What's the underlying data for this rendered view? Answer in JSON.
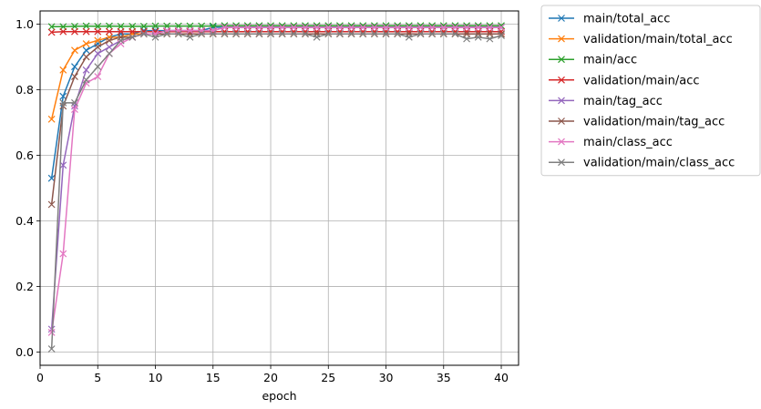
{
  "chart_data": {
    "type": "line",
    "title": "",
    "xlabel": "epoch",
    "ylabel": "",
    "xlim": [
      0,
      41.5
    ],
    "ylim": [
      -0.04,
      1.04
    ],
    "xticks": [
      0,
      5,
      10,
      15,
      20,
      25,
      30,
      35,
      40
    ],
    "xtick_labels": [
      "0",
      "5",
      "10",
      "15",
      "20",
      "25",
      "30",
      "35",
      "40"
    ],
    "yticks": [
      0.0,
      0.2,
      0.4,
      0.6,
      0.8,
      1.0
    ],
    "ytick_labels": [
      "0.0",
      "0.2",
      "0.4",
      "0.6",
      "0.8",
      "1.0"
    ],
    "grid": true,
    "marker": "x",
    "legend_position": "outside-top-right",
    "x": [
      1,
      2,
      3,
      4,
      5,
      6,
      7,
      8,
      9,
      10,
      11,
      12,
      13,
      14,
      15,
      16,
      17,
      18,
      19,
      20,
      21,
      22,
      23,
      24,
      25,
      26,
      27,
      28,
      29,
      30,
      31,
      32,
      33,
      34,
      35,
      36,
      37,
      38,
      39,
      40
    ],
    "series": [
      {
        "name": "main/total_acc",
        "color": "#1f77b4",
        "values": [
          0.53,
          0.78,
          0.87,
          0.92,
          0.94,
          0.96,
          0.97,
          0.97,
          0.98,
          0.98,
          0.98,
          0.98,
          0.98,
          0.98,
          0.99,
          0.99,
          0.99,
          0.99,
          0.99,
          0.99,
          0.99,
          0.99,
          0.99,
          0.99,
          0.99,
          0.99,
          0.99,
          0.99,
          0.99,
          0.99,
          0.99,
          0.99,
          0.99,
          0.99,
          0.99,
          0.99,
          0.99,
          0.99,
          0.99,
          0.99
        ]
      },
      {
        "name": "validation/main/total_acc",
        "color": "#ff7f0e",
        "values": [
          0.71,
          0.86,
          0.92,
          0.94,
          0.95,
          0.96,
          0.96,
          0.97,
          0.97,
          0.97,
          0.97,
          0.97,
          0.97,
          0.97,
          0.97,
          0.97,
          0.97,
          0.97,
          0.97,
          0.97,
          0.97,
          0.97,
          0.97,
          0.97,
          0.97,
          0.97,
          0.97,
          0.97,
          0.97,
          0.97,
          0.97,
          0.97,
          0.97,
          0.97,
          0.97,
          0.97,
          0.97,
          0.97,
          0.97,
          0.97
        ]
      },
      {
        "name": "main/acc",
        "color": "#2ca02c",
        "values": [
          0.992,
          0.992,
          0.993,
          0.994,
          0.993,
          0.994,
          0.993,
          0.993,
          0.993,
          0.994,
          0.994,
          0.994,
          0.994,
          0.994,
          0.994,
          0.995,
          0.995,
          0.995,
          0.995,
          0.995,
          0.995,
          0.995,
          0.995,
          0.995,
          0.995,
          0.995,
          0.995,
          0.995,
          0.995,
          0.995,
          0.995,
          0.995,
          0.995,
          0.995,
          0.995,
          0.995,
          0.995,
          0.995,
          0.995,
          0.995
        ]
      },
      {
        "name": "validation/main/acc",
        "color": "#d62728",
        "values": [
          0.975,
          0.977,
          0.977,
          0.977,
          0.977,
          0.977,
          0.977,
          0.977,
          0.977,
          0.977,
          0.977,
          0.977,
          0.977,
          0.977,
          0.977,
          0.977,
          0.977,
          0.977,
          0.977,
          0.977,
          0.977,
          0.977,
          0.977,
          0.977,
          0.977,
          0.977,
          0.977,
          0.977,
          0.977,
          0.977,
          0.977,
          0.977,
          0.977,
          0.977,
          0.977,
          0.977,
          0.977,
          0.977,
          0.977,
          0.977
        ]
      },
      {
        "name": "main/tag_acc",
        "color": "#9467bd",
        "values": [
          0.07,
          0.57,
          0.75,
          0.86,
          0.91,
          0.93,
          0.95,
          0.96,
          0.97,
          0.97,
          0.98,
          0.98,
          0.98,
          0.98,
          0.98,
          0.99,
          0.99,
          0.99,
          0.99,
          0.99,
          0.99,
          0.99,
          0.99,
          0.99,
          0.99,
          0.99,
          0.99,
          0.99,
          0.99,
          0.99,
          0.99,
          0.99,
          0.99,
          0.99,
          0.99,
          0.99,
          0.99,
          0.99,
          0.99,
          0.99
        ]
      },
      {
        "name": "validation/main/tag_acc",
        "color": "#8c564b",
        "values": [
          0.45,
          0.75,
          0.84,
          0.9,
          0.93,
          0.95,
          0.96,
          0.96,
          0.97,
          0.97,
          0.97,
          0.97,
          0.97,
          0.97,
          0.97,
          0.97,
          0.97,
          0.97,
          0.97,
          0.97,
          0.97,
          0.97,
          0.97,
          0.97,
          0.97,
          0.97,
          0.97,
          0.97,
          0.97,
          0.97,
          0.97,
          0.97,
          0.97,
          0.97,
          0.97,
          0.97,
          0.97,
          0.97,
          0.97,
          0.97
        ]
      },
      {
        "name": "main/class_acc",
        "color": "#e377c2",
        "values": [
          0.06,
          0.3,
          0.74,
          0.82,
          0.84,
          0.91,
          0.94,
          0.96,
          0.97,
          0.97,
          0.98,
          0.98,
          0.98,
          0.98,
          0.98,
          0.99,
          0.99,
          0.99,
          0.99,
          0.99,
          0.99,
          0.99,
          0.99,
          0.99,
          0.99,
          0.99,
          0.99,
          0.99,
          0.99,
          0.99,
          0.99,
          0.99,
          0.99,
          0.99,
          0.99,
          0.99,
          0.99,
          0.99,
          0.99,
          0.99
        ]
      },
      {
        "name": "validation/main/class_acc",
        "color": "#7f7f7f",
        "values": [
          0.01,
          0.76,
          0.76,
          0.83,
          0.87,
          0.91,
          0.95,
          0.96,
          0.97,
          0.96,
          0.97,
          0.97,
          0.96,
          0.97,
          0.97,
          0.97,
          0.97,
          0.97,
          0.97,
          0.97,
          0.97,
          0.97,
          0.97,
          0.96,
          0.97,
          0.97,
          0.97,
          0.97,
          0.97,
          0.97,
          0.97,
          0.96,
          0.97,
          0.97,
          0.97,
          0.97,
          0.955,
          0.96,
          0.955,
          0.965
        ]
      }
    ]
  }
}
